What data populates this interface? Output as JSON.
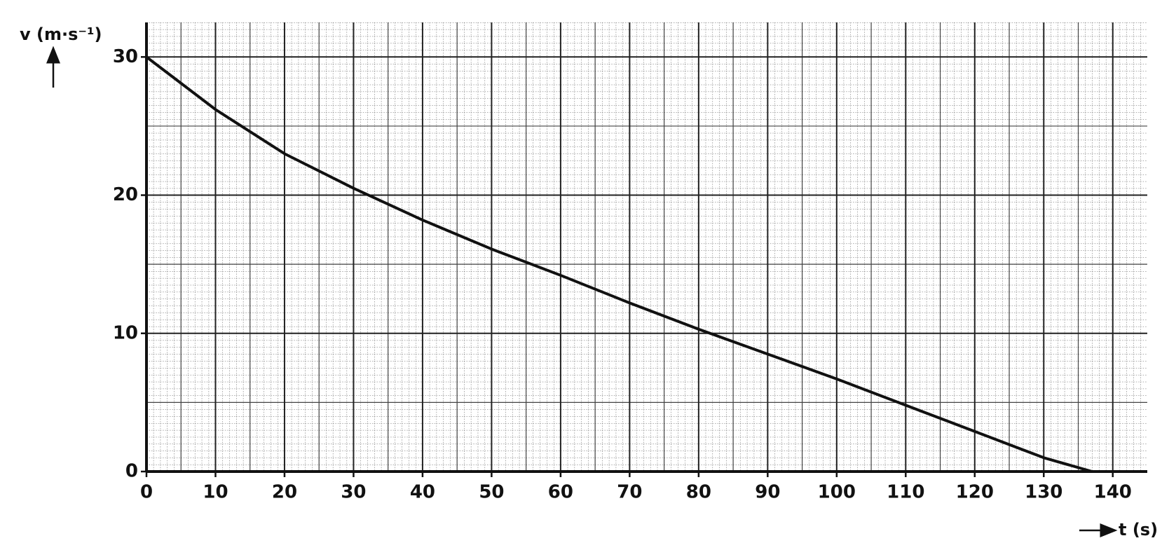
{
  "chart_data": {
    "type": "line",
    "x_label": "t (s)",
    "y_label": "v (m·s⁻¹)",
    "x": [
      0,
      10,
      20,
      30,
      40,
      50,
      60,
      70,
      80,
      90,
      100,
      110,
      120,
      130,
      137
    ],
    "series": [
      {
        "color": "#111111",
        "values": [
          30,
          26.2,
          23.0,
          20.5,
          18.2,
          16.1,
          14.2,
          12.2,
          10.3,
          8.5,
          6.7,
          4.8,
          2.9,
          1.0,
          0
        ]
      }
    ],
    "xlim": [
      0,
      145
    ],
    "ylim": [
      0,
      32.5
    ],
    "xticks": [
      0,
      10,
      20,
      30,
      40,
      50,
      60,
      70,
      80,
      90,
      100,
      110,
      120,
      130,
      140
    ],
    "yticks": [
      0,
      10,
      20,
      30
    ],
    "grid": true
  }
}
